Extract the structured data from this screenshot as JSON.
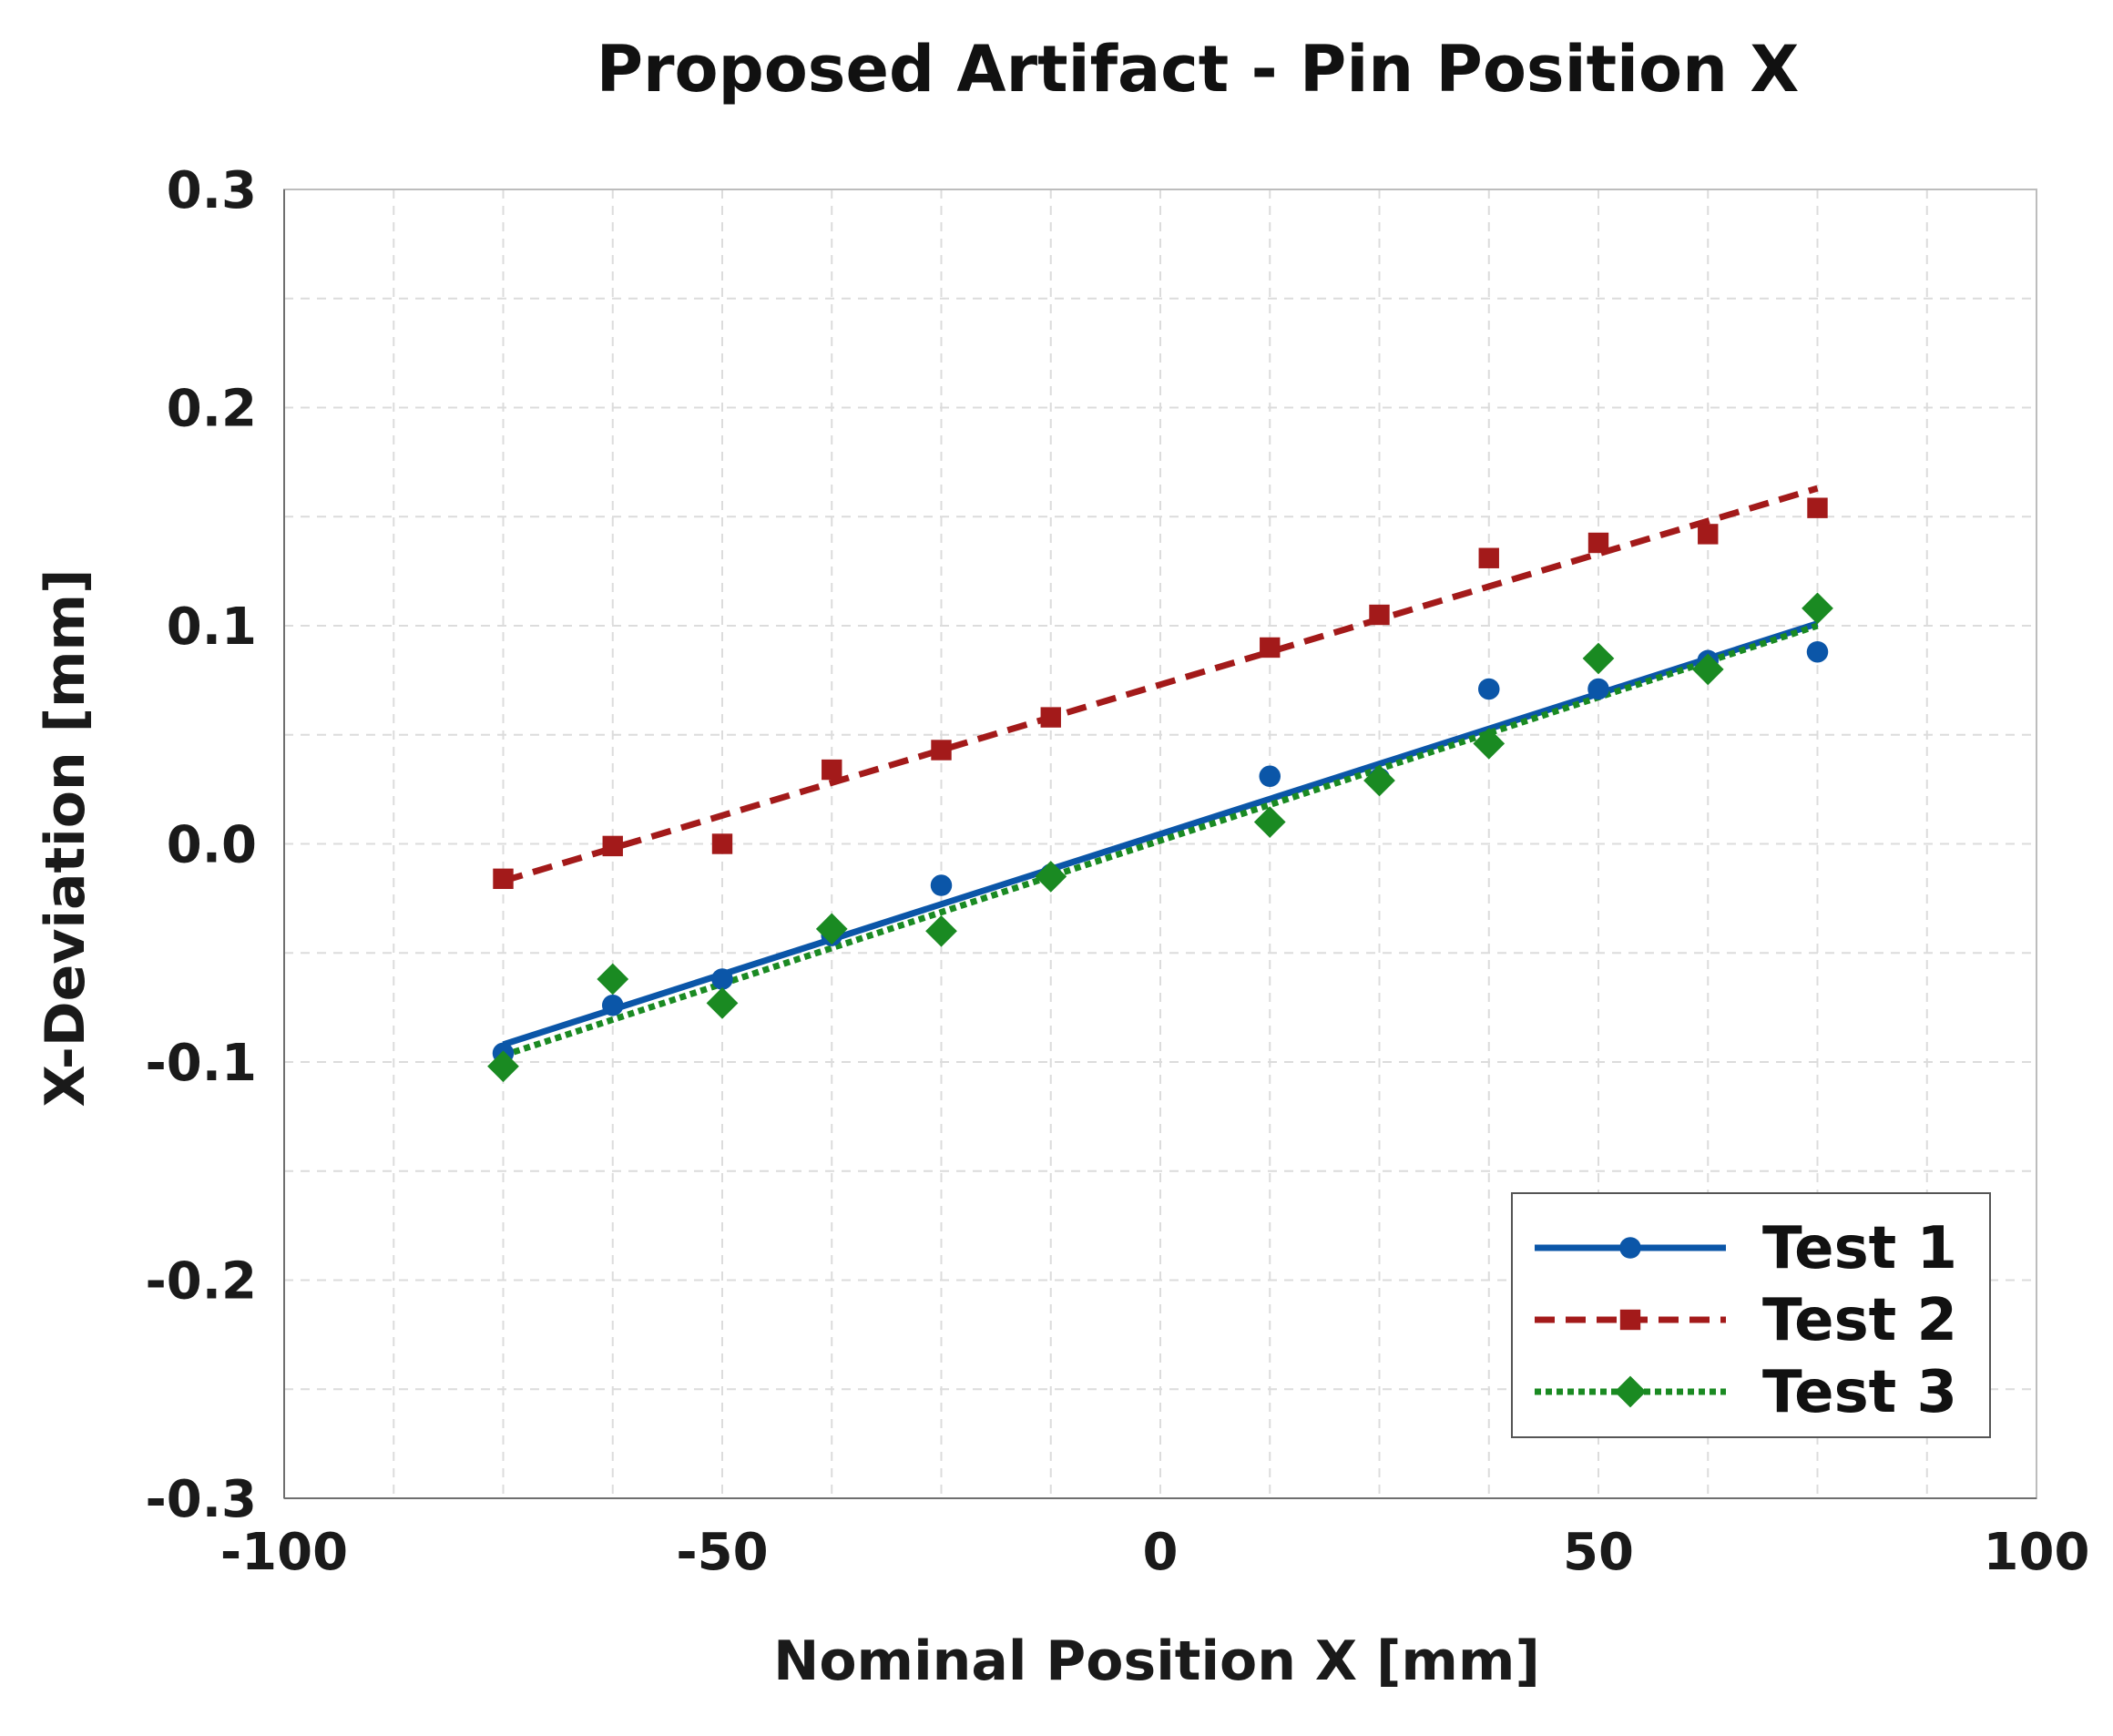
{
  "chart_data": {
    "type": "scatter",
    "title": "Proposed Artifact - Pin Position X",
    "xlabel": "Nominal Position X [mm]",
    "ylabel": "X-Deviation [mm]",
    "xlim": [
      -100,
      100
    ],
    "ylim": [
      -0.3,
      0.3
    ],
    "x_ticks": [
      -100,
      -50,
      0,
      50,
      100
    ],
    "x_tick_labels": [
      "-100",
      "-50",
      "0",
      "50",
      "100"
    ],
    "y_ticks": [
      -0.3,
      -0.2,
      -0.1,
      0.0,
      0.1,
      0.2,
      0.3
    ],
    "y_tick_labels": [
      "-0.3",
      "-0.2",
      "-0.1",
      "0.0",
      "0.1",
      "0.2",
      "0.3"
    ],
    "grid": true,
    "legend_position": "bottom-right",
    "series": [
      {
        "name": "Test 1",
        "color": "#0b56a8",
        "marker": "circle",
        "line_style": "solid",
        "points": [
          [
            -75,
            -0.096
          ],
          [
            -62.5,
            -0.074
          ],
          [
            -50,
            -0.062
          ],
          [
            -37.5,
            -0.042
          ],
          [
            -25,
            -0.019
          ],
          [
            -12.5,
            -0.014
          ],
          [
            12.5,
            0.031
          ],
          [
            25,
            0.03
          ],
          [
            37.5,
            0.071
          ],
          [
            50,
            0.071
          ],
          [
            62.5,
            0.084
          ],
          [
            75,
            0.088
          ]
        ],
        "fit": [
          [
            -75,
            -0.092
          ],
          [
            75,
            0.101
          ]
        ]
      },
      {
        "name": "Test 2",
        "color": "#a31a1a",
        "marker": "square",
        "line_style": "dashed",
        "points": [
          [
            -75,
            -0.016
          ],
          [
            -62.5,
            -0.001
          ],
          [
            -50,
            0.0
          ],
          [
            -37.5,
            0.034
          ],
          [
            -25,
            0.043
          ],
          [
            -12.5,
            0.058
          ],
          [
            12.5,
            0.09
          ],
          [
            25,
            0.105
          ],
          [
            37.5,
            0.131
          ],
          [
            50,
            0.138
          ],
          [
            62.5,
            0.142
          ],
          [
            75,
            0.154
          ]
        ],
        "fit": [
          [
            -75,
            -0.017
          ],
          [
            75,
            0.163
          ]
        ]
      },
      {
        "name": "Test 3",
        "color": "#1a8a22",
        "marker": "diamond",
        "line_style": "dotted",
        "points": [
          [
            -75,
            -0.102
          ],
          [
            -62.5,
            -0.062
          ],
          [
            -50,
            -0.073
          ],
          [
            -37.5,
            -0.039
          ],
          [
            -25,
            -0.04
          ],
          [
            -12.5,
            -0.015
          ],
          [
            12.5,
            0.01
          ],
          [
            25,
            0.029
          ],
          [
            37.5,
            0.046
          ],
          [
            50,
            0.085
          ],
          [
            62.5,
            0.08
          ],
          [
            75,
            0.108
          ]
        ],
        "fit": [
          [
            -75,
            -0.097
          ],
          [
            75,
            0.1
          ]
        ]
      }
    ]
  }
}
